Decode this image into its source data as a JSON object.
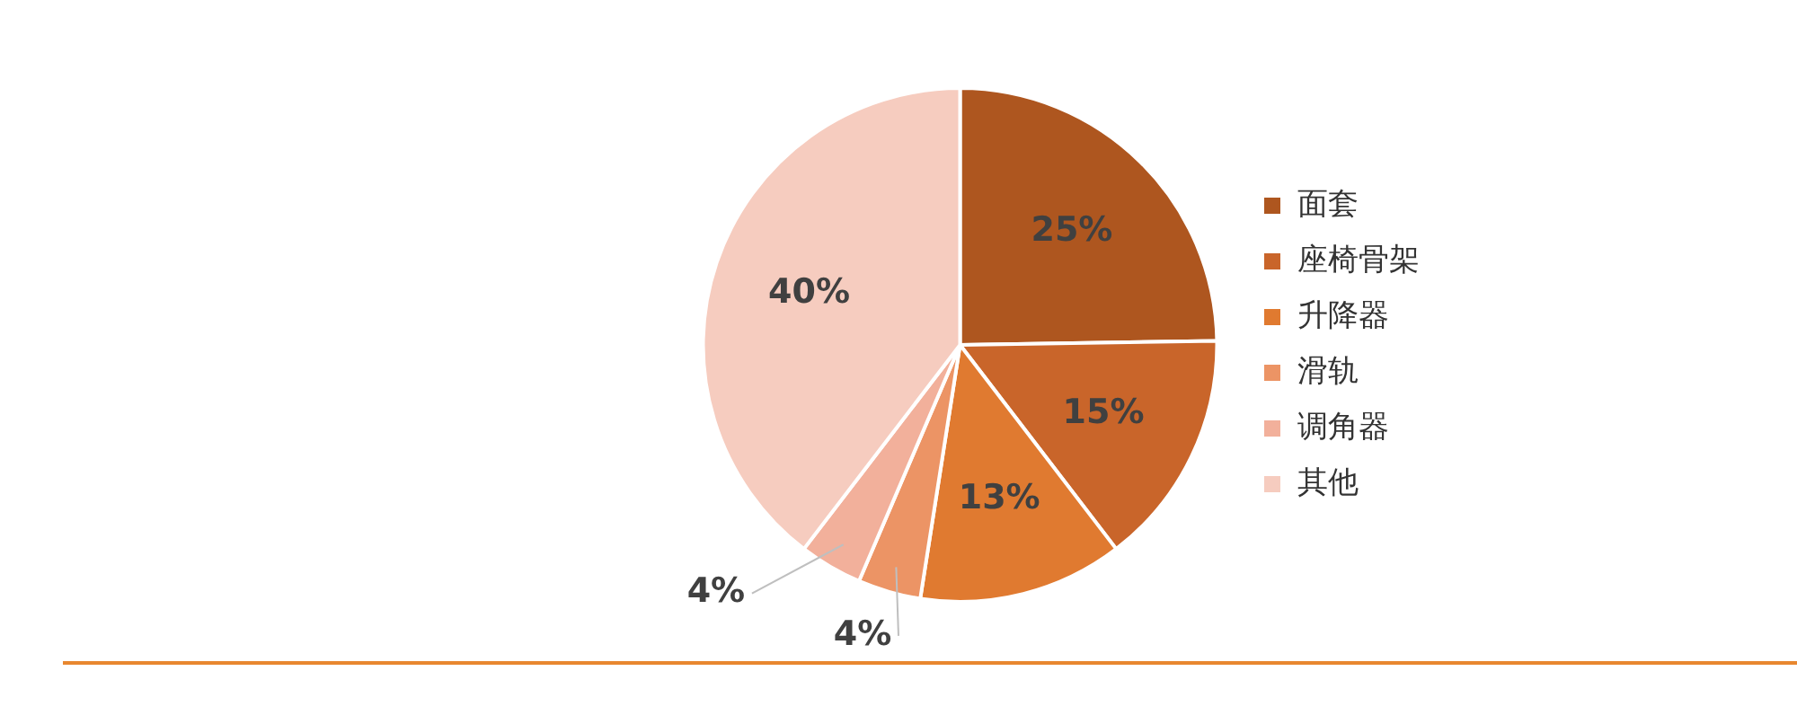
{
  "chart_data": {
    "type": "pie",
    "categories": [
      "面套",
      "座椅骨架",
      "升降器",
      "滑轨",
      "调角器",
      "其他"
    ],
    "values": [
      25,
      15,
      13,
      4,
      4,
      40
    ],
    "value_labels": [
      "25%",
      "15%",
      "13%",
      "4%",
      "4%",
      "40%"
    ],
    "colors": [
      "#ae561f",
      "#c9652a",
      "#e07a30",
      "#ec9465",
      "#f2b09b",
      "#f6ccbf"
    ],
    "legend": "right"
  }
}
